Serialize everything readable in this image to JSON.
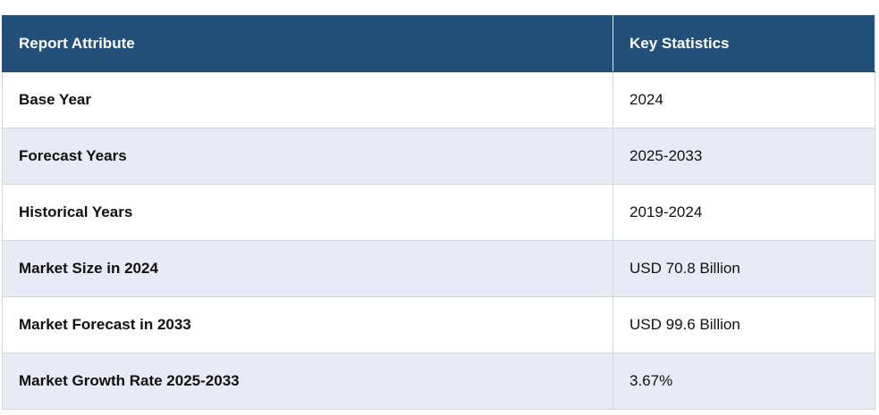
{
  "table": {
    "header": [
      "Report Attribute",
      "Key Statistics"
    ],
    "rows": [
      [
        "Base Year",
        "2024"
      ],
      [
        "Forecast Years",
        "2025-2033"
      ],
      [
        "Historical Years",
        "2019-2024"
      ],
      [
        "Market Size in 2024",
        "USD 70.8 Billion"
      ],
      [
        "Market Forecast in 2033",
        "USD 99.6 Billion"
      ],
      [
        "Market Growth Rate 2025-2033",
        "3.67%"
      ]
    ]
  }
}
